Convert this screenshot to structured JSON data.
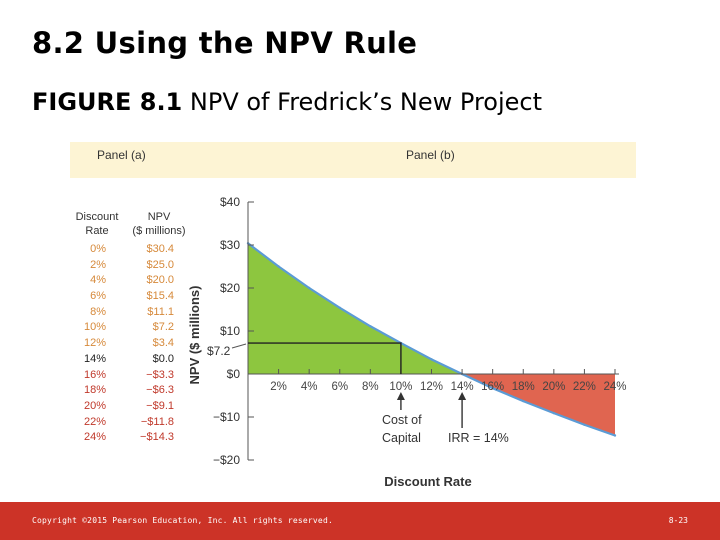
{
  "slide": {
    "title": "8.2 Using the NPV Rule",
    "figure_label": "FIGURE 8.1",
    "figure_caption": " NPV of Fredrick’s New Project",
    "footer_copyright": "Copyright ©2015 Pearson Education, Inc. All rights reserved.",
    "footer_page": "8-23"
  },
  "panels": {
    "a_label": "Panel (a)",
    "b_label": "Panel (b)"
  },
  "table": {
    "rate_header_line1": "Discount",
    "rate_header_line2": "Rate",
    "npv_header_line1": "NPV",
    "npv_header_line2": "($ millions)",
    "rows": [
      {
        "rate": "0%",
        "npv": "$30.4"
      },
      {
        "rate": "2%",
        "npv": "$25.0"
      },
      {
        "rate": "4%",
        "npv": "$20.0"
      },
      {
        "rate": "6%",
        "npv": "$15.4"
      },
      {
        "rate": "8%",
        "npv": "$11.1"
      },
      {
        "rate": "10%",
        "npv": "$7.2"
      },
      {
        "rate": "12%",
        "npv": "$3.4"
      },
      {
        "rate": "14%",
        "npv": "$0.0"
      },
      {
        "rate": "16%",
        "npv": "−$3.3"
      },
      {
        "rate": "18%",
        "npv": "−$6.3"
      },
      {
        "rate": "20%",
        "npv": "−$9.1"
      },
      {
        "rate": "22%",
        "npv": "−$11.8"
      },
      {
        "rate": "24%",
        "npv": "−$14.3"
      }
    ]
  },
  "chart_data": {
    "type": "area",
    "xlabel": "Discount Rate",
    "ylabel": "NPV ($ millions)",
    "x": [
      0,
      2,
      4,
      6,
      8,
      10,
      12,
      14,
      16,
      18,
      20,
      22,
      24
    ],
    "y": [
      30.4,
      25.0,
      20.0,
      15.4,
      11.1,
      7.2,
      3.4,
      0.0,
      -3.3,
      -6.3,
      -9.1,
      -11.8,
      -14.3
    ],
    "xlim": [
      0,
      24
    ],
    "ylim": [
      -20,
      40
    ],
    "x_ticks": [
      2,
      4,
      6,
      8,
      10,
      12,
      14,
      16,
      18,
      20,
      22,
      24
    ],
    "x_tick_labels": [
      "2%",
      "4%",
      "6%",
      "8%",
      "10%",
      "12%",
      "14%",
      "16%",
      "18%",
      "20%",
      "22%",
      "24%"
    ],
    "y_ticks": [
      40,
      30,
      20,
      10,
      0,
      -10,
      -20
    ],
    "y_tick_labels": [
      "$40",
      "$30",
      "$20",
      "$10",
      "$0",
      "−$10",
      "−$20"
    ],
    "positive_color": "#8dc63f",
    "negative_color": "#e06550",
    "line_color": "#5b9bd5",
    "highlight": {
      "x": 10,
      "y": 7.2,
      "label": "$7.2"
    },
    "annotations": [
      {
        "x": 10,
        "line1": "Cost of",
        "line2": "Capital"
      },
      {
        "x": 14,
        "line1": "IRR = 14%"
      }
    ],
    "grid": false
  }
}
